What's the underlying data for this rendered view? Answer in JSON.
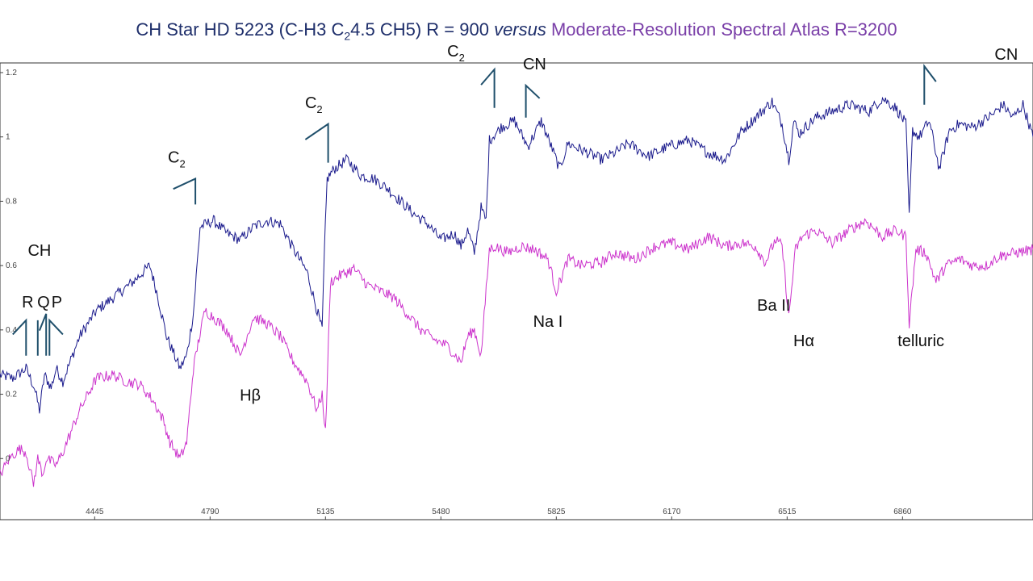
{
  "title": {
    "part1": "CH Star HD 5223 (C-H3 C",
    "sub": "2",
    "part2": "4.5 CH5)  R = 900 ",
    "versus": "versus",
    "part3": "Moderate-Resolution Spectral Atlas  R=3200",
    "color_dark": "#1f2f6b",
    "color_purple": "#7a3fa8"
  },
  "chart_data": {
    "type": "line",
    "title": "CH Star HD 5223 (C-H3 C2 4.5 CH5) R = 900 versus Moderate-Resolution Spectral Atlas R=3200",
    "xlabel": "",
    "ylabel": "",
    "xlim": [
      4162,
      7250
    ],
    "ylim": [
      -0.19,
      1.23
    ],
    "x_ticks": [
      "4445",
      "4790",
      "5135",
      "5480",
      "5825",
      "6170",
      "6515",
      "6860"
    ],
    "y_ticks": [
      "0",
      "0.2",
      "0.4",
      "0.6",
      "0.8",
      "1",
      "1.2"
    ],
    "grid": false,
    "series": [
      {
        "color": "#1a1a8c",
        "x": [
          4162,
          4200,
          4240,
          4265,
          4280,
          4295,
          4315,
          4330,
          4350,
          4400,
          4450,
          4500,
          4560,
          4610,
          4630,
          4660,
          4700,
          4720,
          4740,
          4760,
          4800,
          4840,
          4880,
          4920,
          4960,
          5000,
          5040,
          5080,
          5110,
          5125,
          5132,
          5140,
          5160,
          5200,
          5240,
          5280,
          5320,
          5360,
          5400,
          5440,
          5480,
          5520,
          5540,
          5560,
          5580,
          5600,
          5615,
          5625,
          5660,
          5700,
          5740,
          5780,
          5810,
          5835,
          5860,
          5900,
          5960,
          6000,
          6040,
          6100,
          6160,
          6220,
          6280,
          6330,
          6380,
          6420,
          6470,
          6500,
          6520,
          6535,
          6550,
          6600,
          6650,
          6700,
          6760,
          6800,
          6840,
          6870,
          6880,
          6890,
          6910,
          6940,
          6970,
          7000,
          7030,
          7070,
          7100,
          7130,
          7160,
          7190,
          7220,
          7250
        ],
        "y": [
          0.26,
          0.25,
          0.28,
          0.22,
          0.15,
          0.26,
          0.22,
          0.28,
          0.24,
          0.38,
          0.46,
          0.5,
          0.55,
          0.6,
          0.52,
          0.38,
          0.28,
          0.32,
          0.45,
          0.72,
          0.74,
          0.7,
          0.68,
          0.72,
          0.74,
          0.73,
          0.65,
          0.58,
          0.46,
          0.4,
          0.65,
          0.87,
          0.9,
          0.93,
          0.88,
          0.87,
          0.84,
          0.8,
          0.76,
          0.73,
          0.68,
          0.7,
          0.66,
          0.71,
          0.64,
          0.78,
          0.74,
          0.99,
          1.03,
          1.05,
          0.97,
          1.05,
          0.97,
          0.9,
          0.98,
          0.96,
          0.93,
          0.95,
          0.98,
          0.94,
          0.97,
          0.99,
          0.95,
          0.93,
          1.02,
          1.06,
          1.11,
          1.04,
          0.93,
          1.05,
          1.01,
          1.06,
          1.08,
          1.1,
          1.08,
          1.12,
          1.09,
          1.04,
          0.75,
          1.02,
          1.0,
          1.05,
          0.9,
          1.02,
          1.04,
          1.03,
          1.05,
          1.07,
          1.1,
          1.06,
          1.1,
          1.0
        ]
      },
      {
        "color": "#cc33cc",
        "x": [
          4162,
          4190,
          4220,
          4240,
          4262,
          4275,
          4290,
          4300,
          4330,
          4350,
          4400,
          4450,
          4500,
          4540,
          4580,
          4620,
          4650,
          4670,
          4700,
          4720,
          4740,
          4760,
          4775,
          4800,
          4840,
          4880,
          4920,
          4960,
          5000,
          5040,
          5080,
          5110,
          5125,
          5135,
          5150,
          5180,
          5220,
          5260,
          5300,
          5340,
          5380,
          5420,
          5460,
          5500,
          5540,
          5560,
          5580,
          5600,
          5625,
          5640,
          5680,
          5720,
          5760,
          5800,
          5825,
          5860,
          5900,
          5960,
          6000,
          6060,
          6120,
          6170,
          6220,
          6280,
          6330,
          6380,
          6420,
          6450,
          6480,
          6500,
          6520,
          6540,
          6560,
          6600,
          6650,
          6700,
          6750,
          6800,
          6840,
          6870,
          6880,
          6900,
          6930,
          6960,
          6990,
          7030,
          7070,
          7110,
          7150,
          7200,
          7250
        ],
        "y": [
          -0.05,
          0.0,
          0.03,
          0.02,
          -0.08,
          0.0,
          -0.05,
          0.0,
          -0.02,
          0.02,
          0.15,
          0.25,
          0.26,
          0.24,
          0.23,
          0.18,
          0.12,
          0.05,
          0.0,
          0.05,
          0.28,
          0.39,
          0.46,
          0.44,
          0.4,
          0.32,
          0.44,
          0.42,
          0.38,
          0.3,
          0.24,
          0.15,
          0.2,
          0.08,
          0.55,
          0.57,
          0.59,
          0.54,
          0.52,
          0.5,
          0.45,
          0.4,
          0.37,
          0.35,
          0.3,
          0.38,
          0.4,
          0.32,
          0.65,
          0.66,
          0.64,
          0.66,
          0.65,
          0.62,
          0.52,
          0.62,
          0.6,
          0.61,
          0.64,
          0.62,
          0.66,
          0.67,
          0.65,
          0.69,
          0.66,
          0.67,
          0.66,
          0.61,
          0.68,
          0.66,
          0.44,
          0.65,
          0.69,
          0.71,
          0.67,
          0.71,
          0.74,
          0.69,
          0.71,
          0.69,
          0.42,
          0.65,
          0.64,
          0.55,
          0.6,
          0.62,
          0.6,
          0.6,
          0.63,
          0.64,
          0.65
        ]
      }
    ],
    "annotations": [
      {
        "label": "CH",
        "x": 4280,
        "y": 0.63
      },
      {
        "label": "R",
        "x": 4245,
        "y": 0.47
      },
      {
        "label": "Q",
        "x": 4292,
        "y": 0.47
      },
      {
        "label": "P",
        "x": 4332,
        "y": 0.47
      },
      {
        "label": "C",
        "sub": "2",
        "x": 4690,
        "y": 0.92
      },
      {
        "label": "C",
        "sub": "2",
        "x": 5100,
        "y": 1.09
      },
      {
        "label": "C",
        "sub": "2",
        "x": 5525,
        "y": 1.25
      },
      {
        "label": "CN",
        "x": 5760,
        "y": 1.21
      },
      {
        "label": "CN",
        "x": 7170,
        "y": 1.24
      },
      {
        "label": "Hβ",
        "x": 4910,
        "y": 0.18
      },
      {
        "label": "Na I",
        "x": 5800,
        "y": 0.41
      },
      {
        "label": "Ba II",
        "x": 6475,
        "y": 0.46
      },
      {
        "label": "Hα",
        "x": 6565,
        "y": 0.35
      },
      {
        "label": "telluric",
        "x": 6915,
        "y": 0.35
      }
    ],
    "band_marks": [
      {
        "head_x": 4240,
        "tail_x": 4200,
        "y_top": 0.43,
        "y_bottom": 0.32
      },
      {
        "head_x": 4275,
        "tail_x": 4275,
        "y_top": 0.43,
        "y_bottom": 0.32
      },
      {
        "head_x": 4310,
        "tail_x": 4350,
        "y_top": 0.43,
        "y_bottom": 0.32
      },
      {
        "head_x": 4300,
        "tail_x": 4280,
        "y_top": 0.45,
        "y_bottom": 0.32
      },
      {
        "head_x": 4746,
        "tail_x": 4680,
        "y_top": 0.87,
        "y_bottom": 0.79
      },
      {
        "head_x": 5143,
        "tail_x": 5075,
        "y_top": 1.04,
        "y_bottom": 0.92
      },
      {
        "head_x": 5640,
        "tail_x": 5600,
        "y_top": 1.21,
        "y_bottom": 1.09
      },
      {
        "head_x": 5734,
        "tail_x": 5775,
        "y_top": 1.16,
        "y_bottom": 1.06
      },
      {
        "head_x": 6925,
        "tail_x": 6960,
        "y_top": 1.22,
        "y_bottom": 1.1
      }
    ],
    "band_mark_color": "#1f4f6b"
  }
}
